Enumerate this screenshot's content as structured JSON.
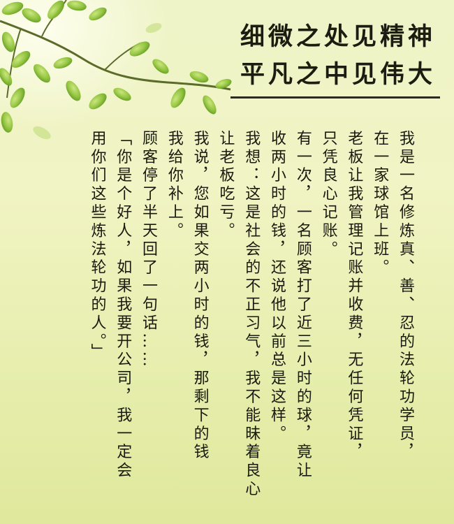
{
  "title": {
    "line1": "细微之处见精神",
    "line2": "平凡之中见伟大"
  },
  "columns": [
    "我是一名修炼真、善、忍的法轮功学员，",
    "在一家球馆上班。",
    "老板让我管理记账并收费，无任何凭证，",
    "只凭良心记账。",
    "有一次，一名顾客打了近三小时的球，竟让",
    "收两小时的钱，还说他以前总是这样。",
    "我想：这是社会的不正习气，我不能昧着良心",
    "让老板吃亏。",
    "我说，您如果交两小时的钱，那剩下的钱",
    "我给你补上。",
    "顾客停了半天回了一句话……",
    "「你是个好人，如果我要开公司，我一定会",
    "用你们这些炼法轮功的人。」"
  ],
  "colors": {
    "background_top": "#eef4c8",
    "background_bottom": "#dfe89c",
    "leaf_green": "#8fc23a",
    "text": "#1a1a10"
  }
}
